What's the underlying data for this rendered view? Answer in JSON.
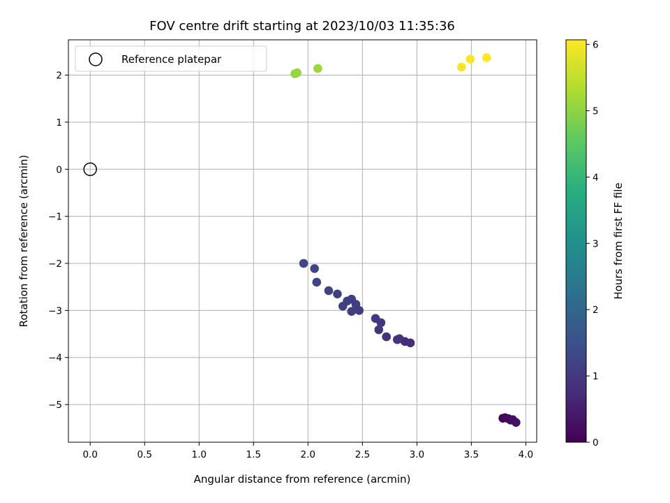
{
  "chart_data": {
    "type": "scatter",
    "title": "FOV centre drift starting at 2023/10/03 11:35:36",
    "xlabel": "Angular distance from reference (arcmin)",
    "ylabel": "Rotation from reference (arcmin)",
    "xlim": [
      -0.2,
      4.1
    ],
    "ylim": [
      -5.8,
      2.75
    ],
    "xticks": [
      0.0,
      0.5,
      1.0,
      1.5,
      2.0,
      2.5,
      3.0,
      3.5,
      4.0
    ],
    "xtick_labels": [
      "0.0",
      "0.5",
      "1.0",
      "1.5",
      "2.0",
      "2.5",
      "3.0",
      "3.5",
      "4.0"
    ],
    "yticks": [
      -5,
      -4,
      -3,
      -2,
      -1,
      0,
      1,
      2
    ],
    "ytick_labels": [
      "−5",
      "−4",
      "−3",
      "−2",
      "−1",
      "0",
      "1",
      "2"
    ],
    "grid": true,
    "legend": {
      "placement": "top-left",
      "entries": [
        "Reference platepar"
      ]
    },
    "reference_point": {
      "x": 0.0,
      "y": 0.0
    },
    "colorbar": {
      "label": "Hours from first FF file",
      "colormap": "viridis",
      "range": [
        0,
        6.07
      ],
      "ticks": [
        0,
        1,
        2,
        3,
        4,
        5,
        6
      ],
      "tick_labels": [
        "0",
        "1",
        "2",
        "3",
        "4",
        "5",
        "6"
      ]
    },
    "points": [
      {
        "x": 3.79,
        "y": -5.29,
        "hours": 0.05
      },
      {
        "x": 3.81,
        "y": -5.28,
        "hours": 0.1
      },
      {
        "x": 3.84,
        "y": -5.3,
        "hours": 0.15
      },
      {
        "x": 3.86,
        "y": -5.33,
        "hours": 0.2
      },
      {
        "x": 3.88,
        "y": -5.32,
        "hours": 0.25
      },
      {
        "x": 3.91,
        "y": -5.38,
        "hours": 0.3
      },
      {
        "x": 2.94,
        "y": -3.69,
        "hours": 0.75
      },
      {
        "x": 2.89,
        "y": -3.66,
        "hours": 0.8
      },
      {
        "x": 2.84,
        "y": -3.6,
        "hours": 0.85
      },
      {
        "x": 2.82,
        "y": -3.62,
        "hours": 0.9
      },
      {
        "x": 2.72,
        "y": -3.56,
        "hours": 0.92
      },
      {
        "x": 2.65,
        "y": -3.41,
        "hours": 0.95
      },
      {
        "x": 2.67,
        "y": -3.26,
        "hours": 1.0
      },
      {
        "x": 2.62,
        "y": -3.17,
        "hours": 1.02
      },
      {
        "x": 2.47,
        "y": -3.0,
        "hours": 1.05
      },
      {
        "x": 2.4,
        "y": -3.02,
        "hours": 1.08
      },
      {
        "x": 2.44,
        "y": -2.87,
        "hours": 1.1
      },
      {
        "x": 2.4,
        "y": -2.76,
        "hours": 1.12
      },
      {
        "x": 2.36,
        "y": -2.8,
        "hours": 1.14
      },
      {
        "x": 2.32,
        "y": -2.91,
        "hours": 1.16
      },
      {
        "x": 2.27,
        "y": -2.65,
        "hours": 1.18
      },
      {
        "x": 2.19,
        "y": -2.58,
        "hours": 1.2
      },
      {
        "x": 2.08,
        "y": -2.4,
        "hours": 1.22
      },
      {
        "x": 2.06,
        "y": -2.11,
        "hours": 1.24
      },
      {
        "x": 1.96,
        "y": -2.0,
        "hours": 1.26
      },
      {
        "x": 1.88,
        "y": 2.03,
        "hours": 5.05
      },
      {
        "x": 1.9,
        "y": 2.05,
        "hours": 5.1
      },
      {
        "x": 2.09,
        "y": 2.14,
        "hours": 5.15
      },
      {
        "x": 3.41,
        "y": 2.17,
        "hours": 6.0
      },
      {
        "x": 3.49,
        "y": 2.34,
        "hours": 6.03
      },
      {
        "x": 3.64,
        "y": 2.37,
        "hours": 6.06
      }
    ]
  }
}
